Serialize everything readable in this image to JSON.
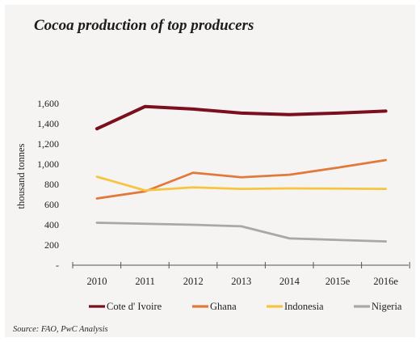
{
  "chart_data": {
    "type": "line",
    "title": "Cocoa production of top producers",
    "ylabel": "thousand tonnes",
    "xlabel": "",
    "categories": [
      "2010",
      "2011",
      "2012",
      "2013",
      "2014",
      "2015e",
      "2016e"
    ],
    "yticks": [
      "-",
      "200",
      "400",
      "600",
      "800",
      "1,000",
      "1,200",
      "1,400",
      "1,600"
    ],
    "ylim": [
      0,
      1600
    ],
    "grid": false,
    "legend_position": "bottom",
    "series": [
      {
        "name": "Cote d' Ivoire",
        "color": "#7a0f1e",
        "values": [
          1350,
          1570,
          1545,
          1505,
          1490,
          1505,
          1525
        ]
      },
      {
        "name": "Ghana",
        "color": "#e07a3c",
        "values": [
          660,
          730,
          915,
          870,
          895,
          965,
          1040
        ]
      },
      {
        "name": "Indonesia",
        "color": "#f5c542",
        "values": [
          875,
          740,
          770,
          755,
          760,
          758,
          755
        ]
      },
      {
        "name": "Nigeria",
        "color": "#a8a8a8",
        "values": [
          420,
          410,
          400,
          385,
          265,
          250,
          235
        ]
      }
    ],
    "source": "Source: FAO, PwC Analysis"
  }
}
